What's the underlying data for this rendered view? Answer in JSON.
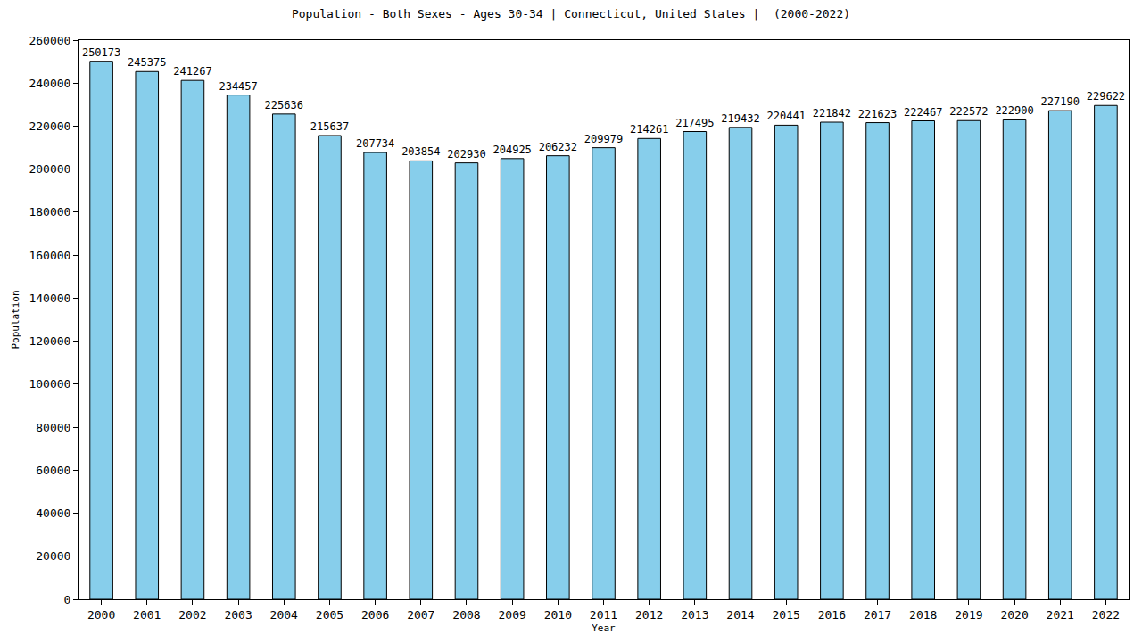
{
  "chart_data": {
    "type": "bar",
    "title": "Population - Both Sexes - Ages 30-34 | Connecticut, United States |  (2000-2022)",
    "x_label": "Year",
    "y_label": "Population",
    "categories": [
      "2000",
      "2001",
      "2002",
      "2003",
      "2004",
      "2005",
      "2006",
      "2007",
      "2008",
      "2009",
      "2010",
      "2011",
      "2012",
      "2013",
      "2014",
      "2015",
      "2016",
      "2017",
      "2018",
      "2019",
      "2020",
      "2021",
      "2022"
    ],
    "values": [
      250173,
      245375,
      241267,
      234457,
      225636,
      215637,
      207734,
      203854,
      202930,
      204925,
      206232,
      209979,
      214261,
      217495,
      219432,
      220441,
      221842,
      221623,
      222467,
      222572,
      222900,
      227190,
      229622
    ],
    "color": "#87ceeb",
    "ylim": [
      0,
      260000
    ],
    "yticks": [
      0,
      20000,
      40000,
      60000,
      80000,
      100000,
      120000,
      140000,
      160000,
      180000,
      200000,
      220000,
      240000,
      260000
    ],
    "grid": false,
    "data_labels": true
  }
}
